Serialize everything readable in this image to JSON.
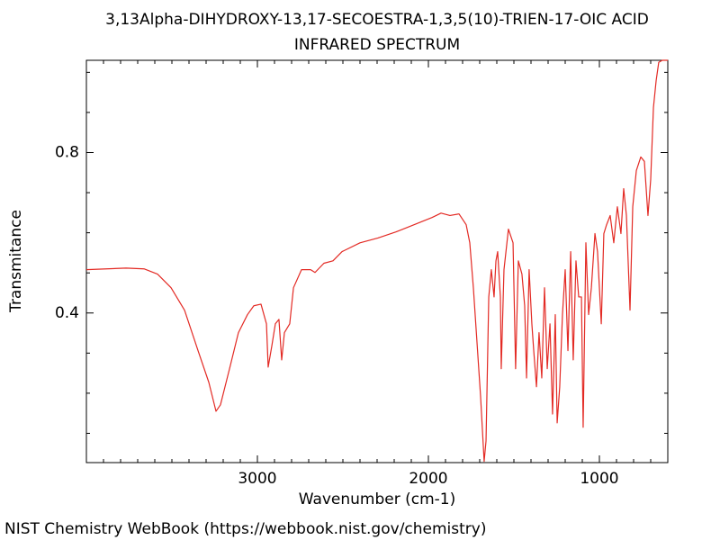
{
  "chart_data": {
    "type": "line",
    "title": "3,13Alpha-DIHYDROXY-13,17-SECOESTRA-1,3,5(10)-TRIEN-17-OIC ACID",
    "subtitle": "INFRARED SPECTRUM",
    "xlabel": "Wavenumber (cm-1)",
    "ylabel": "Transmitance",
    "source": "NIST Chemistry WebBook (https://webbook.nist.gov/chemistry)",
    "color": "#e32a24",
    "xlim": [
      4000,
      600
    ],
    "ylim": [
      0.027,
      1.03
    ],
    "xticks": [
      3000,
      2000,
      1000
    ],
    "yticks": [
      0.4,
      0.8
    ],
    "xticks_minor": [
      700,
      800,
      900,
      1100,
      1200,
      1300,
      1400,
      1500,
      1600,
      1700,
      1800,
      1900,
      2100,
      2200,
      2300,
      2400,
      2500,
      2600,
      2700,
      2800,
      2900,
      3100,
      3200,
      3300,
      3400,
      3500,
      3600,
      3700,
      3800,
      3900
    ],
    "yticks_minor": [
      0.1,
      0.2,
      0.3,
      0.5,
      0.6,
      0.7,
      0.9,
      1.0
    ],
    "x": [
      4000,
      3768,
      3663,
      3584,
      3505,
      3426,
      3347,
      3284,
      3242,
      3216,
      3163,
      3111,
      3058,
      3021,
      2979,
      2947,
      2937,
      2916,
      2895,
      2874,
      2858,
      2842,
      2811,
      2789,
      2742,
      2689,
      2663,
      2611,
      2558,
      2505,
      2400,
      2295,
      2190,
      2084,
      1979,
      1926,
      1874,
      1821,
      1779,
      1758,
      1737,
      1716,
      1695,
      1674,
      1663,
      1647,
      1632,
      1616,
      1605,
      1595,
      1579,
      1574,
      1558,
      1532,
      1505,
      1490,
      1474,
      1453,
      1437,
      1426,
      1411,
      1395,
      1384,
      1368,
      1353,
      1337,
      1321,
      1305,
      1289,
      1274,
      1258,
      1247,
      1232,
      1216,
      1200,
      1184,
      1168,
      1153,
      1137,
      1121,
      1105,
      1095,
      1079,
      1063,
      1047,
      1026,
      1011,
      989,
      974,
      958,
      937,
      916,
      895,
      874,
      858,
      842,
      821,
      805,
      784,
      758,
      737,
      716,
      700,
      684,
      668,
      653,
      632,
      600
    ],
    "values": [
      0.508,
      0.512,
      0.51,
      0.497,
      0.463,
      0.407,
      0.306,
      0.227,
      0.155,
      0.171,
      0.261,
      0.351,
      0.396,
      0.418,
      0.422,
      0.373,
      0.265,
      0.317,
      0.373,
      0.384,
      0.283,
      0.351,
      0.373,
      0.463,
      0.508,
      0.508,
      0.501,
      0.524,
      0.53,
      0.553,
      0.575,
      0.587,
      0.602,
      0.62,
      0.638,
      0.649,
      0.643,
      0.647,
      0.62,
      0.575,
      0.463,
      0.328,
      0.193,
      0.03,
      0.081,
      0.44,
      0.508,
      0.44,
      0.53,
      0.553,
      0.44,
      0.261,
      0.508,
      0.609,
      0.575,
      0.261,
      0.53,
      0.497,
      0.418,
      0.238,
      0.508,
      0.373,
      0.306,
      0.216,
      0.351,
      0.238,
      0.463,
      0.261,
      0.373,
      0.148,
      0.396,
      0.126,
      0.216,
      0.396,
      0.508,
      0.306,
      0.553,
      0.283,
      0.53,
      0.44,
      0.44,
      0.115,
      0.575,
      0.396,
      0.463,
      0.598,
      0.553,
      0.373,
      0.598,
      0.62,
      0.643,
      0.575,
      0.665,
      0.598,
      0.71,
      0.643,
      0.407,
      0.665,
      0.755,
      0.789,
      0.778,
      0.643,
      0.733,
      0.912,
      0.98,
      1.025,
      1.03,
      1.03
    ]
  }
}
